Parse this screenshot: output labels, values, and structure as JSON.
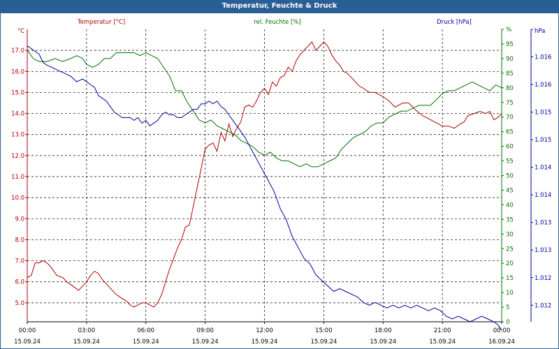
{
  "window": {
    "title": "Temperatur, Feuchte & Druck"
  },
  "colors": {
    "temperature": "#b00000",
    "humidity": "#007000",
    "pressure": "#00009c",
    "axis": "#000000",
    "grid": "#000000",
    "title_bg": "#2a5f95"
  },
  "chart_data": {
    "type": "line",
    "title": "Temperatur, Feuchte & Druck",
    "grid": true,
    "x_ticks": [
      {
        "time": "00:00",
        "date": "15.09.24"
      },
      {
        "time": "03:00",
        "date": "15.09.24"
      },
      {
        "time": "06:00",
        "date": "15.09.24"
      },
      {
        "time": "09:00",
        "date": "15.09.24"
      },
      {
        "time": "12:00",
        "date": "15.09.24"
      },
      {
        "time": "15:00",
        "date": "15.09.24"
      },
      {
        "time": "18:00",
        "date": "15.09.24"
      },
      {
        "time": "21:00",
        "date": "15.09.24"
      },
      {
        "time": "00:00",
        "date": "16.09.24"
      }
    ],
    "x_range_hours": [
      0,
      24
    ],
    "axes": {
      "temperature": {
        "label": "Temperatur [°C]",
        "unit": "°C",
        "range": [
          4.1,
          18.0
        ],
        "ticks": [
          "5.0",
          "6.0",
          "7.0",
          "8.0",
          "9.0",
          "10.0",
          "11.0",
          "12.0",
          "13.0",
          "14.0",
          "15.0",
          "16.0",
          "17.0"
        ],
        "tick_values": [
          5,
          6,
          7,
          8,
          9,
          10,
          11,
          12,
          13,
          14,
          15,
          16,
          17
        ]
      },
      "humidity": {
        "label": "rel. Feuchte [%]",
        "unit": "%",
        "range": [
          0,
          100
        ],
        "ticks": [
          "0",
          "5",
          "10",
          "15",
          "20",
          "25",
          "30",
          "35",
          "40",
          "45",
          "50",
          "55",
          "60",
          "65",
          "70",
          "75",
          "80",
          "85",
          "90",
          "95",
          "%"
        ],
        "tick_values": [
          0,
          5,
          10,
          15,
          20,
          25,
          30,
          35,
          40,
          45,
          50,
          55,
          60,
          65,
          70,
          75,
          80,
          85,
          90,
          95,
          100
        ]
      },
      "pressure": {
        "label": "Druck [hPa]",
        "unit": "hPa",
        "range": [
          1011.45,
          1016.75
        ],
        "ticks": [
          "1.012",
          "1.012",
          "1.013",
          "1.013",
          "1.014",
          "1.014",
          "1.015",
          "1.015",
          "1.016",
          "1.016",
          "hPa"
        ],
        "tick_values": [
          1011.75,
          1012.25,
          1012.75,
          1013.25,
          1013.75,
          1014.25,
          1014.75,
          1015.25,
          1015.75,
          1016.25,
          1016.75
        ]
      }
    },
    "series": [
      {
        "name": "Temperatur [°C]",
        "axis": "temperature",
        "x": [
          0,
          0.2,
          0.4,
          0.6,
          0.8,
          1.0,
          1.2,
          1.5,
          1.8,
          2.0,
          2.3,
          2.6,
          2.8,
          3.0,
          3.2,
          3.4,
          3.6,
          3.8,
          4.0,
          4.2,
          4.5,
          4.8,
          5.0,
          5.2,
          5.4,
          5.6,
          5.8,
          6.0,
          6.2,
          6.4,
          6.6,
          6.8,
          7.0,
          7.2,
          7.4,
          7.6,
          7.8,
          8.0,
          8.2,
          8.4,
          8.6,
          8.8,
          9.0,
          9.2,
          9.4,
          9.6,
          9.8,
          10.0,
          10.2,
          10.4,
          10.6,
          10.8,
          11.0,
          11.2,
          11.4,
          11.6,
          11.8,
          12.0,
          12.2,
          12.4,
          12.6,
          12.8,
          13.0,
          13.2,
          13.4,
          13.6,
          13.8,
          14.0,
          14.2,
          14.4,
          14.6,
          14.8,
          15.0,
          15.2,
          15.4,
          15.6,
          15.8,
          16.0,
          16.2,
          16.4,
          16.6,
          16.8,
          17.0,
          17.3,
          17.6,
          18.0,
          18.3,
          18.6,
          19.0,
          19.3,
          19.6,
          20.0,
          20.2,
          20.4,
          20.6,
          20.8,
          21.0,
          21.3,
          21.6,
          21.9,
          22.1,
          22.3,
          22.6,
          22.9,
          23.2,
          23.4,
          23.6,
          23.8,
          24.0
        ],
        "values": [
          6.2,
          6.3,
          6.9,
          6.9,
          7.0,
          6.9,
          6.7,
          6.3,
          6.2,
          6.0,
          5.8,
          5.6,
          5.8,
          6.0,
          6.3,
          6.5,
          6.4,
          6.1,
          5.9,
          5.7,
          5.4,
          5.2,
          5.1,
          4.9,
          4.8,
          4.9,
          5.0,
          5.0,
          4.9,
          4.8,
          5.0,
          5.4,
          6.0,
          6.6,
          7.1,
          7.6,
          8.0,
          8.6,
          8.7,
          9.6,
          10.5,
          11.4,
          12.3,
          12.5,
          12.6,
          12.2,
          13.1,
          12.7,
          13.5,
          12.9,
          13.3,
          13.6,
          14.3,
          14.4,
          14.3,
          14.6,
          15.0,
          15.2,
          14.9,
          15.5,
          15.3,
          15.7,
          15.8,
          16.2,
          16.0,
          16.5,
          16.8,
          17.0,
          17.2,
          17.4,
          17.0,
          17.2,
          17.4,
          17.2,
          16.8,
          16.5,
          16.3,
          16.0,
          15.9,
          15.7,
          15.5,
          15.3,
          15.2,
          15.0,
          15.0,
          14.8,
          14.6,
          14.3,
          14.5,
          14.5,
          14.2,
          13.9,
          13.8,
          13.7,
          13.6,
          13.5,
          13.4,
          13.4,
          13.3,
          13.5,
          13.6,
          13.9,
          14.0,
          14.1,
          14.0,
          14.1,
          13.7,
          13.8,
          14.0
        ]
      },
      {
        "name": "rel. Feuchte [%]",
        "axis": "humidity",
        "x": [
          0,
          0.3,
          0.6,
          1.0,
          1.4,
          1.8,
          2.2,
          2.5,
          2.8,
          3.0,
          3.3,
          3.6,
          3.9,
          4.2,
          4.5,
          4.8,
          5.1,
          5.4,
          5.7,
          6.0,
          6.3,
          6.6,
          6.9,
          7.2,
          7.5,
          7.8,
          8.1,
          8.4,
          8.7,
          9.0,
          9.3,
          9.6,
          9.9,
          10.2,
          10.5,
          10.8,
          11.1,
          11.4,
          11.7,
          12.0,
          12.3,
          12.6,
          12.9,
          13.2,
          13.5,
          13.8,
          14.1,
          14.4,
          14.7,
          15.0,
          15.3,
          15.6,
          15.9,
          16.2,
          16.5,
          16.8,
          17.1,
          17.4,
          17.7,
          18.0,
          18.3,
          18.6,
          18.9,
          19.2,
          19.5,
          19.8,
          20.1,
          20.4,
          20.7,
          21.0,
          21.3,
          21.6,
          21.9,
          22.2,
          22.5,
          22.8,
          23.1,
          23.4,
          23.7,
          24.0
        ],
        "values": [
          93,
          90,
          89,
          89,
          90,
          89,
          90,
          91,
          90,
          88,
          87,
          88,
          90,
          90,
          92,
          92,
          92,
          92,
          91,
          92,
          91,
          90,
          87,
          84,
          79,
          79,
          75,
          72,
          69,
          68,
          69,
          67,
          66,
          65,
          64,
          62,
          61,
          60,
          58,
          57,
          58,
          56,
          55,
          55,
          54,
          53,
          54,
          53,
          53,
          54,
          55,
          56,
          59,
          61,
          63,
          64,
          65,
          67,
          68,
          68,
          70,
          71,
          72,
          72,
          73,
          74,
          74,
          74,
          76,
          78,
          79,
          79,
          80,
          81,
          82,
          81,
          80,
          79,
          81,
          80
        ]
      },
      {
        "name": "Druck [hPa]",
        "axis": "pressure",
        "x": [
          0,
          0.2,
          0.4,
          0.6,
          0.8,
          1.0,
          1.3,
          1.6,
          1.9,
          2.2,
          2.5,
          2.8,
          3.0,
          3.2,
          3.4,
          3.6,
          3.8,
          4.0,
          4.2,
          4.4,
          4.6,
          4.8,
          5.0,
          5.2,
          5.4,
          5.6,
          5.8,
          6.0,
          6.2,
          6.4,
          6.6,
          6.8,
          7.0,
          7.2,
          7.4,
          7.6,
          7.8,
          8.0,
          8.2,
          8.4,
          8.6,
          8.8,
          9.0,
          9.2,
          9.4,
          9.6,
          9.8,
          10.0,
          10.2,
          10.4,
          10.6,
          10.8,
          11.0,
          11.3,
          11.6,
          11.9,
          12.2,
          12.5,
          12.8,
          13.1,
          13.4,
          13.7,
          14.0,
          14.3,
          14.6,
          14.9,
          15.2,
          15.5,
          15.8,
          16.1,
          16.4,
          16.7,
          17.0,
          17.3,
          17.6,
          17.9,
          18.2,
          18.5,
          18.8,
          19.1,
          19.4,
          19.7,
          20.0,
          20.3,
          20.6,
          20.9,
          21.2,
          21.5,
          21.8,
          22.1,
          22.4,
          22.7,
          23.0,
          23.3,
          23.6,
          23.8,
          24.0
        ],
        "values": [
          1016.45,
          1016.4,
          1016.35,
          1016.3,
          1016.15,
          1016.1,
          1016.05,
          1016.0,
          1015.95,
          1015.9,
          1015.8,
          1015.85,
          1015.8,
          1015.75,
          1015.7,
          1015.55,
          1015.5,
          1015.45,
          1015.35,
          1015.25,
          1015.2,
          1015.15,
          1015.15,
          1015.15,
          1015.1,
          1015.15,
          1015.05,
          1015.1,
          1015.0,
          1015.05,
          1015.1,
          1015.2,
          1015.25,
          1015.2,
          1015.2,
          1015.15,
          1015.15,
          1015.2,
          1015.25,
          1015.3,
          1015.3,
          1015.4,
          1015.4,
          1015.45,
          1015.4,
          1015.45,
          1015.35,
          1015.3,
          1015.2,
          1015.1,
          1015.0,
          1014.9,
          1014.8,
          1014.6,
          1014.4,
          1014.2,
          1014.0,
          1013.8,
          1013.5,
          1013.3,
          1013.0,
          1012.8,
          1012.6,
          1012.5,
          1012.3,
          1012.2,
          1012.1,
          1012.0,
          1012.05,
          1012.0,
          1011.95,
          1011.9,
          1011.8,
          1011.75,
          1011.8,
          1011.75,
          1011.7,
          1011.75,
          1011.7,
          1011.75,
          1011.7,
          1011.75,
          1011.7,
          1011.65,
          1011.7,
          1011.65,
          1011.55,
          1011.5,
          1011.55,
          1011.5,
          1011.45,
          1011.5,
          1011.55,
          1011.5,
          1011.45,
          1011.4,
          1011.3
        ]
      }
    ]
  }
}
